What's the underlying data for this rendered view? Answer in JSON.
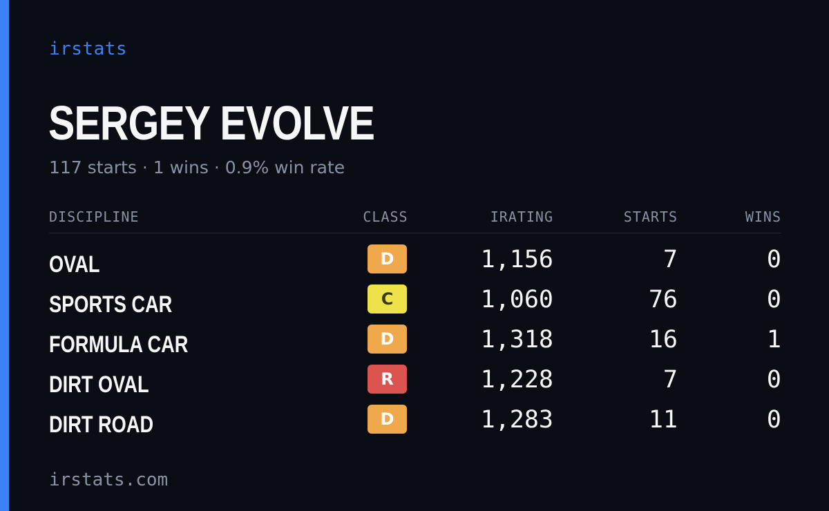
{
  "brand": "irstats",
  "title": "SERGEY EVOLVE",
  "subtitle": "117 starts · 1 wins · 0.9% win rate",
  "table": {
    "headers": {
      "discipline": "DISCIPLINE",
      "class": "CLASS",
      "irating": "IRATING",
      "starts": "STARTS",
      "wins": "WINS"
    },
    "rows": [
      {
        "discipline": "OVAL",
        "class": "D",
        "class_color": "#f0a84c",
        "class_text_color": "#ffffff",
        "irating": "1,156",
        "starts": "7",
        "wins": "0"
      },
      {
        "discipline": "SPORTS CAR",
        "class": "C",
        "class_color": "#ede24a",
        "class_text_color": "#3a3a10",
        "irating": "1,060",
        "starts": "76",
        "wins": "0"
      },
      {
        "discipline": "FORMULA CAR",
        "class": "D",
        "class_color": "#f0a84c",
        "class_text_color": "#ffffff",
        "irating": "1,318",
        "starts": "16",
        "wins": "1"
      },
      {
        "discipline": "DIRT OVAL",
        "class": "R",
        "class_color": "#dc5450",
        "class_text_color": "#ffffff",
        "irating": "1,228",
        "starts": "7",
        "wins": "0"
      },
      {
        "discipline": "DIRT ROAD",
        "class": "D",
        "class_color": "#f0a84c",
        "class_text_color": "#ffffff",
        "irating": "1,283",
        "starts": "11",
        "wins": "0"
      }
    ]
  },
  "footer": "irstats.com",
  "colors": {
    "accent": "#3b82f6",
    "background": "#0b0d14",
    "text": "#f5f6f8",
    "muted": "#8a93a6"
  }
}
